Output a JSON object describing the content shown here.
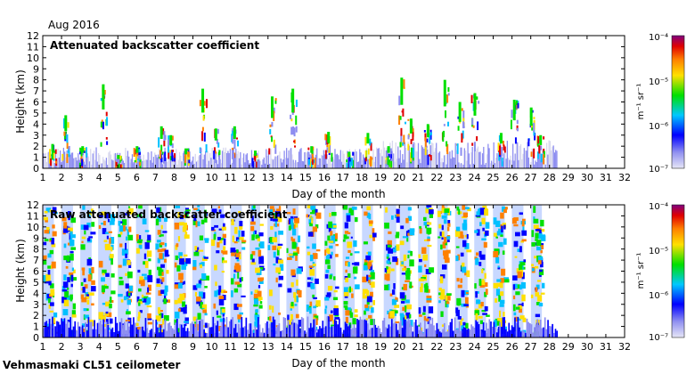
{
  "header": {
    "month_label": "Aug 2016"
  },
  "footer": {
    "station_label": "Vehmasmaki CL51 ceilometer"
  },
  "colors": {
    "cmap": [
      "#d8d8ee",
      "#8c8cf0",
      "#0000ff",
      "#00c0ff",
      "#00e000",
      "#ffe000",
      "#ff8000",
      "#e00000",
      "#800080"
    ]
  },
  "chart_data": [
    {
      "type": "heatmap",
      "title": "Attenuated backscatter coefficient",
      "xlabel": "Day of the month",
      "ylabel": "Height (km)",
      "xlim": [
        1,
        32
      ],
      "ylim": [
        0,
        12
      ],
      "x_ticks": [
        "1",
        "2",
        "3",
        "4",
        "5",
        "6",
        "7",
        "8",
        "9",
        "10",
        "11",
        "12",
        "13",
        "14",
        "15",
        "16",
        "17",
        "18",
        "19",
        "20",
        "21",
        "22",
        "23",
        "24",
        "25",
        "26",
        "27",
        "28",
        "29",
        "30",
        "31",
        "32"
      ],
      "y_ticks": [
        "0",
        "1",
        "2",
        "3",
        "4",
        "5",
        "6",
        "7",
        "8",
        "9",
        "10",
        "11",
        "12"
      ],
      "colorbar": {
        "label": "m⁻¹ sr⁻¹",
        "ticks": [
          "10⁻⁷",
          "10⁻⁶",
          "10⁻⁵",
          "10⁻⁴"
        ],
        "scale": "log",
        "range": [
          1e-07,
          0.0001
        ]
      },
      "data_coverage_days": [
        1,
        28.4
      ],
      "features": [
        {
          "day": 1.5,
          "top_km": 2.2
        },
        {
          "day": 2.2,
          "top_km": 4.8
        },
        {
          "day": 3.1,
          "top_km": 2.0
        },
        {
          "day": 4.2,
          "top_km": 7.6
        },
        {
          "day": 5.0,
          "top_km": 1.2
        },
        {
          "day": 6.0,
          "top_km": 2.0
        },
        {
          "day": 7.3,
          "top_km": 3.8
        },
        {
          "day": 7.8,
          "top_km": 3.0
        },
        {
          "day": 8.6,
          "top_km": 1.8
        },
        {
          "day": 9.5,
          "top_km": 7.2
        },
        {
          "day": 10.2,
          "top_km": 3.6
        },
        {
          "day": 11.2,
          "top_km": 3.8
        },
        {
          "day": 12.3,
          "top_km": 1.6
        },
        {
          "day": 13.2,
          "top_km": 6.5
        },
        {
          "day": 14.3,
          "top_km": 7.2
        },
        {
          "day": 15.3,
          "top_km": 2.0
        },
        {
          "day": 16.2,
          "top_km": 3.3
        },
        {
          "day": 17.3,
          "top_km": 1.5
        },
        {
          "day": 18.3,
          "top_km": 3.2
        },
        {
          "day": 19.4,
          "top_km": 2.0
        },
        {
          "day": 20.1,
          "top_km": 8.2
        },
        {
          "day": 20.6,
          "top_km": 4.5
        },
        {
          "day": 21.5,
          "top_km": 4.0
        },
        {
          "day": 22.4,
          "top_km": 8.0
        },
        {
          "day": 23.2,
          "top_km": 6.0
        },
        {
          "day": 24.0,
          "top_km": 6.8
        },
        {
          "day": 25.4,
          "top_km": 3.2
        },
        {
          "day": 26.1,
          "top_km": 6.2
        },
        {
          "day": 27.0,
          "top_km": 5.5
        },
        {
          "day": 27.5,
          "top_km": 3.0
        }
      ]
    },
    {
      "type": "heatmap",
      "title": "Raw attenuated backscatter coefficient",
      "xlabel": "Day of the month",
      "ylabel": "Height (km)",
      "xlim": [
        1,
        32
      ],
      "ylim": [
        0,
        12
      ],
      "x_ticks": [
        "1",
        "2",
        "3",
        "4",
        "5",
        "6",
        "7",
        "8",
        "9",
        "10",
        "11",
        "12",
        "13",
        "14",
        "15",
        "16",
        "17",
        "18",
        "19",
        "20",
        "21",
        "22",
        "23",
        "24",
        "25",
        "26",
        "27",
        "28",
        "29",
        "30",
        "31",
        "32"
      ],
      "y_ticks": [
        "0",
        "1",
        "2",
        "3",
        "4",
        "5",
        "6",
        "7",
        "8",
        "9",
        "10",
        "11",
        "12"
      ],
      "colorbar": {
        "label": "m⁻¹ sr⁻¹",
        "ticks": [
          "10⁻⁷",
          "10⁻⁶",
          "10⁻⁵",
          "10⁻⁴"
        ],
        "scale": "log",
        "range": [
          1e-07,
          0.0001
        ]
      },
      "data_coverage_days": [
        1,
        28.4
      ],
      "daytime_noise_bands_days": [
        1.3,
        2.3,
        3.3,
        4.3,
        5.3,
        6.3,
        7.3,
        8.3,
        9.3,
        10.3,
        11.3,
        12.3,
        13.3,
        14.3,
        15.3,
        16.3,
        17.3,
        18.3,
        19.5,
        20.3,
        21.3,
        22.3,
        23.3,
        24.3,
        25.3,
        26.3,
        27.3
      ]
    }
  ]
}
